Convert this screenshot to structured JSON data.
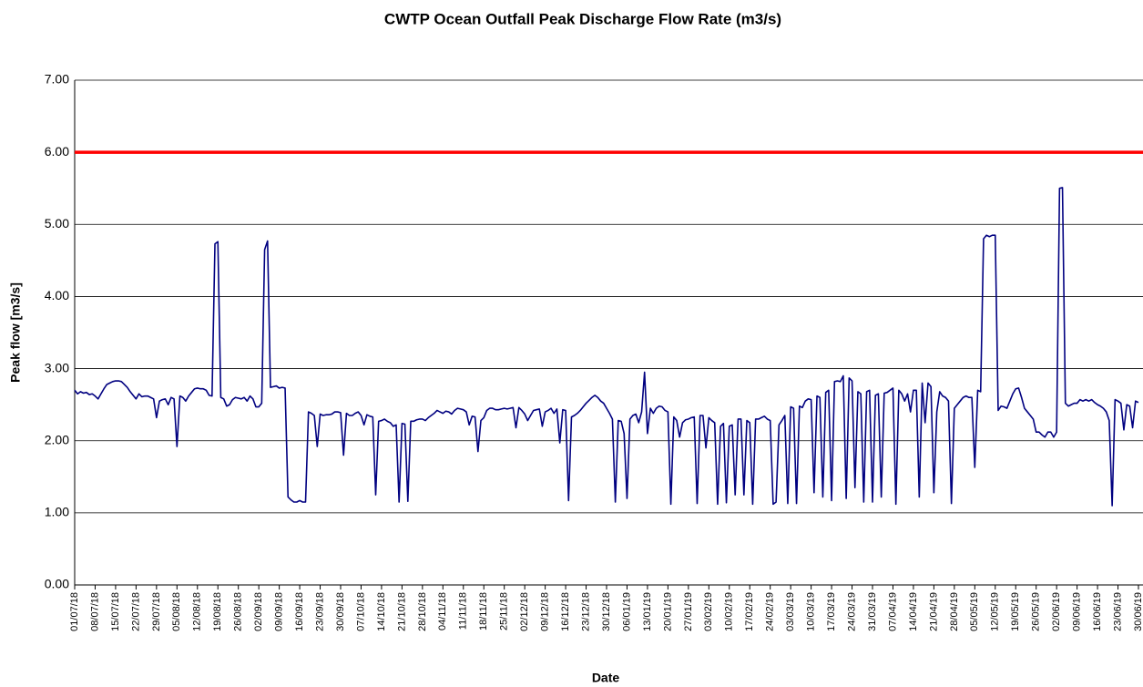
{
  "chart_data": {
    "type": "line",
    "title": "CWTP Ocean Outfall Peak Discharge Flow Rate (m3/s)",
    "x_label": "Date",
    "y_label": "Peak flow  [m3/s]",
    "ylim": [
      0,
      7
    ],
    "yticks": [
      {
        "value": 0,
        "label": "0.00"
      },
      {
        "value": 1,
        "label": "1.00"
      },
      {
        "value": 2,
        "label": "2.00"
      },
      {
        "value": 3,
        "label": "3.00"
      },
      {
        "value": 4,
        "label": "4.00"
      },
      {
        "value": 5,
        "label": "5.00"
      },
      {
        "value": 6,
        "label": "6.00"
      },
      {
        "value": 7,
        "label": "7.00"
      }
    ],
    "grid": true,
    "reference_line": {
      "value": 6,
      "color": "#ff0000"
    },
    "categories": [
      "01/07/18",
      null,
      null,
      null,
      null,
      null,
      null,
      "08/07/18",
      null,
      null,
      null,
      null,
      null,
      null,
      "15/07/18",
      null,
      null,
      null,
      null,
      null,
      null,
      "22/07/18",
      null,
      null,
      null,
      null,
      null,
      null,
      "29/07/18",
      null,
      null,
      null,
      null,
      null,
      null,
      "05/08/18",
      null,
      null,
      null,
      null,
      null,
      null,
      "12/08/18",
      null,
      null,
      null,
      null,
      null,
      null,
      "19/08/18",
      null,
      null,
      null,
      null,
      null,
      null,
      "26/08/18",
      null,
      null,
      null,
      null,
      null,
      null,
      "02/09/18",
      null,
      null,
      null,
      null,
      null,
      null,
      "09/09/18",
      null,
      null,
      null,
      null,
      null,
      null,
      "16/09/18",
      null,
      null,
      null,
      null,
      null,
      null,
      "23/09/18",
      null,
      null,
      null,
      null,
      null,
      null,
      "30/09/18",
      null,
      null,
      null,
      null,
      null,
      null,
      "07/10/18",
      null,
      null,
      null,
      null,
      null,
      null,
      "14/10/18",
      null,
      null,
      null,
      null,
      null,
      null,
      "21/10/18",
      null,
      null,
      null,
      null,
      null,
      null,
      "28/10/18",
      null,
      null,
      null,
      null,
      null,
      null,
      "04/11/18",
      null,
      null,
      null,
      null,
      null,
      null,
      "11/11/18",
      null,
      null,
      null,
      null,
      null,
      null,
      "18/11/18",
      null,
      null,
      null,
      null,
      null,
      null,
      "25/11/18",
      null,
      null,
      null,
      null,
      null,
      null,
      "02/12/18",
      null,
      null,
      null,
      null,
      null,
      null,
      "09/12/18",
      null,
      null,
      null,
      null,
      null,
      null,
      "16/12/18",
      null,
      null,
      null,
      null,
      null,
      null,
      "23/12/18",
      null,
      null,
      null,
      null,
      null,
      null,
      "30/12/18",
      null,
      null,
      null,
      null,
      null,
      null,
      "06/01/19",
      null,
      null,
      null,
      null,
      null,
      null,
      "13/01/19",
      null,
      null,
      null,
      null,
      null,
      null,
      "20/01/19",
      null,
      null,
      null,
      null,
      null,
      null,
      "27/01/19",
      null,
      null,
      null,
      null,
      null,
      null,
      "03/02/19",
      null,
      null,
      null,
      null,
      null,
      null,
      "10/02/19",
      null,
      null,
      null,
      null,
      null,
      null,
      "17/02/19",
      null,
      null,
      null,
      null,
      null,
      null,
      "24/02/19",
      null,
      null,
      null,
      null,
      null,
      null,
      "03/03/19",
      null,
      null,
      null,
      null,
      null,
      null,
      "10/03/19",
      null,
      null,
      null,
      null,
      null,
      null,
      "17/03/19",
      null,
      null,
      null,
      null,
      null,
      null,
      "24/03/19",
      null,
      null,
      null,
      null,
      null,
      null,
      "31/03/19",
      null,
      null,
      null,
      null,
      null,
      null,
      "07/04/19",
      null,
      null,
      null,
      null,
      null,
      null,
      "14/04/19",
      null,
      null,
      null,
      null,
      null,
      null,
      "21/04/19",
      null,
      null,
      null,
      null,
      null,
      null,
      "28/04/19",
      null,
      null,
      null,
      null,
      null,
      null,
      "05/05/19",
      null,
      null,
      null,
      null,
      null,
      null,
      "12/05/19",
      null,
      null,
      null,
      null,
      null,
      null,
      "19/05/19",
      null,
      null,
      null,
      null,
      null,
      null,
      "26/05/19",
      null,
      null,
      null,
      null,
      null,
      null,
      "02/06/19",
      null,
      null,
      null,
      null,
      null,
      null,
      "09/06/19",
      null,
      null,
      null,
      null,
      null,
      null,
      "16/06/19",
      null,
      null,
      null,
      null,
      null,
      null,
      "23/06/19",
      null,
      null,
      null,
      null,
      null,
      null,
      "30/06/19"
    ],
    "series": [
      {
        "color": "#000080",
        "values": [
          2.7,
          2.65,
          2.68,
          2.66,
          2.67,
          2.64,
          2.65,
          2.62,
          2.58,
          2.65,
          2.72,
          2.78,
          2.8,
          2.82,
          2.83,
          2.83,
          2.82,
          2.78,
          2.74,
          2.68,
          2.63,
          2.58,
          2.65,
          2.61,
          2.62,
          2.62,
          2.6,
          2.58,
          2.32,
          2.55,
          2.57,
          2.58,
          2.5,
          2.6,
          2.58,
          1.92,
          2.62,
          2.6,
          2.55,
          2.62,
          2.67,
          2.72,
          2.73,
          2.72,
          2.72,
          2.7,
          2.63,
          2.62,
          4.73,
          4.76,
          2.6,
          2.58,
          2.48,
          2.5,
          2.57,
          2.6,
          2.59,
          2.58,
          2.6,
          2.55,
          2.62,
          2.58,
          2.47,
          2.47,
          2.52,
          4.65,
          4.77,
          2.74,
          2.75,
          2.76,
          2.73,
          2.74,
          2.73,
          1.22,
          1.18,
          1.15,
          1.15,
          1.17,
          1.15,
          1.15,
          2.4,
          2.38,
          2.35,
          1.92,
          2.37,
          2.35,
          2.36,
          2.36,
          2.37,
          2.4,
          2.4,
          2.39,
          1.8,
          2.38,
          2.35,
          2.35,
          2.38,
          2.4,
          2.35,
          2.22,
          2.36,
          2.34,
          2.33,
          1.25,
          2.27,
          2.28,
          2.3,
          2.27,
          2.25,
          2.2,
          2.22,
          1.15,
          2.24,
          2.23,
          1.16,
          2.27,
          2.27,
          2.29,
          2.3,
          2.3,
          2.28,
          2.32,
          2.35,
          2.38,
          2.42,
          2.4,
          2.38,
          2.41,
          2.4,
          2.37,
          2.42,
          2.45,
          2.44,
          2.43,
          2.4,
          2.22,
          2.34,
          2.33,
          1.85,
          2.28,
          2.32,
          2.42,
          2.45,
          2.45,
          2.43,
          2.43,
          2.44,
          2.45,
          2.44,
          2.45,
          2.46,
          2.18,
          2.46,
          2.42,
          2.37,
          2.28,
          2.35,
          2.42,
          2.43,
          2.44,
          2.2,
          2.4,
          2.42,
          2.45,
          2.38,
          2.44,
          1.97,
          2.43,
          2.42,
          1.17,
          2.33,
          2.35,
          2.38,
          2.42,
          2.47,
          2.52,
          2.56,
          2.6,
          2.63,
          2.6,
          2.55,
          2.52,
          2.45,
          2.38,
          2.3,
          1.15,
          2.28,
          2.27,
          2.1,
          1.2,
          2.3,
          2.35,
          2.37,
          2.25,
          2.4,
          2.95,
          2.1,
          2.45,
          2.38,
          2.45,
          2.48,
          2.47,
          2.42,
          2.4,
          1.12,
          2.33,
          2.28,
          2.05,
          2.25,
          2.29,
          2.3,
          2.32,
          2.33,
          1.13,
          2.35,
          2.35,
          1.9,
          2.32,
          2.28,
          2.25,
          1.12,
          2.2,
          2.24,
          1.14,
          2.2,
          2.22,
          1.25,
          2.3,
          2.3,
          1.25,
          2.28,
          2.25,
          1.12,
          2.3,
          2.3,
          2.32,
          2.34,
          2.3,
          2.28,
          1.12,
          1.15,
          2.22,
          2.28,
          2.35,
          1.13,
          2.47,
          2.45,
          1.13,
          2.48,
          2.46,
          2.55,
          2.58,
          2.57,
          1.28,
          2.62,
          2.6,
          1.22,
          2.67,
          2.7,
          1.17,
          2.82,
          2.83,
          2.82,
          2.9,
          1.2,
          2.87,
          2.83,
          1.35,
          2.68,
          2.65,
          1.15,
          2.68,
          2.7,
          1.15,
          2.63,
          2.65,
          1.22,
          2.66,
          2.67,
          2.7,
          2.73,
          1.12,
          2.7,
          2.65,
          2.55,
          2.65,
          2.4,
          2.7,
          2.7,
          1.22,
          2.8,
          2.25,
          2.8,
          2.75,
          1.28,
          2.4,
          2.68,
          2.62,
          2.6,
          2.55,
          1.13,
          2.45,
          2.5,
          2.55,
          2.6,
          2.62,
          2.6,
          2.6,
          1.63,
          2.7,
          2.68,
          4.8,
          4.85,
          4.83,
          4.85,
          4.85,
          2.42,
          2.48,
          2.47,
          2.45,
          2.55,
          2.65,
          2.72,
          2.73,
          2.6,
          2.45,
          2.4,
          2.35,
          2.3,
          2.12,
          2.12,
          2.08,
          2.05,
          2.12,
          2.12,
          2.05,
          2.12,
          5.5,
          5.51,
          2.52,
          2.48,
          2.5,
          2.52,
          2.52,
          2.57,
          2.55,
          2.57,
          2.55,
          2.57,
          2.53,
          2.5,
          2.48,
          2.45,
          2.4,
          2.28,
          1.1,
          2.57,
          2.55,
          2.52,
          2.15,
          2.5,
          2.48,
          2.18,
          2.55,
          2.53
        ]
      }
    ]
  }
}
